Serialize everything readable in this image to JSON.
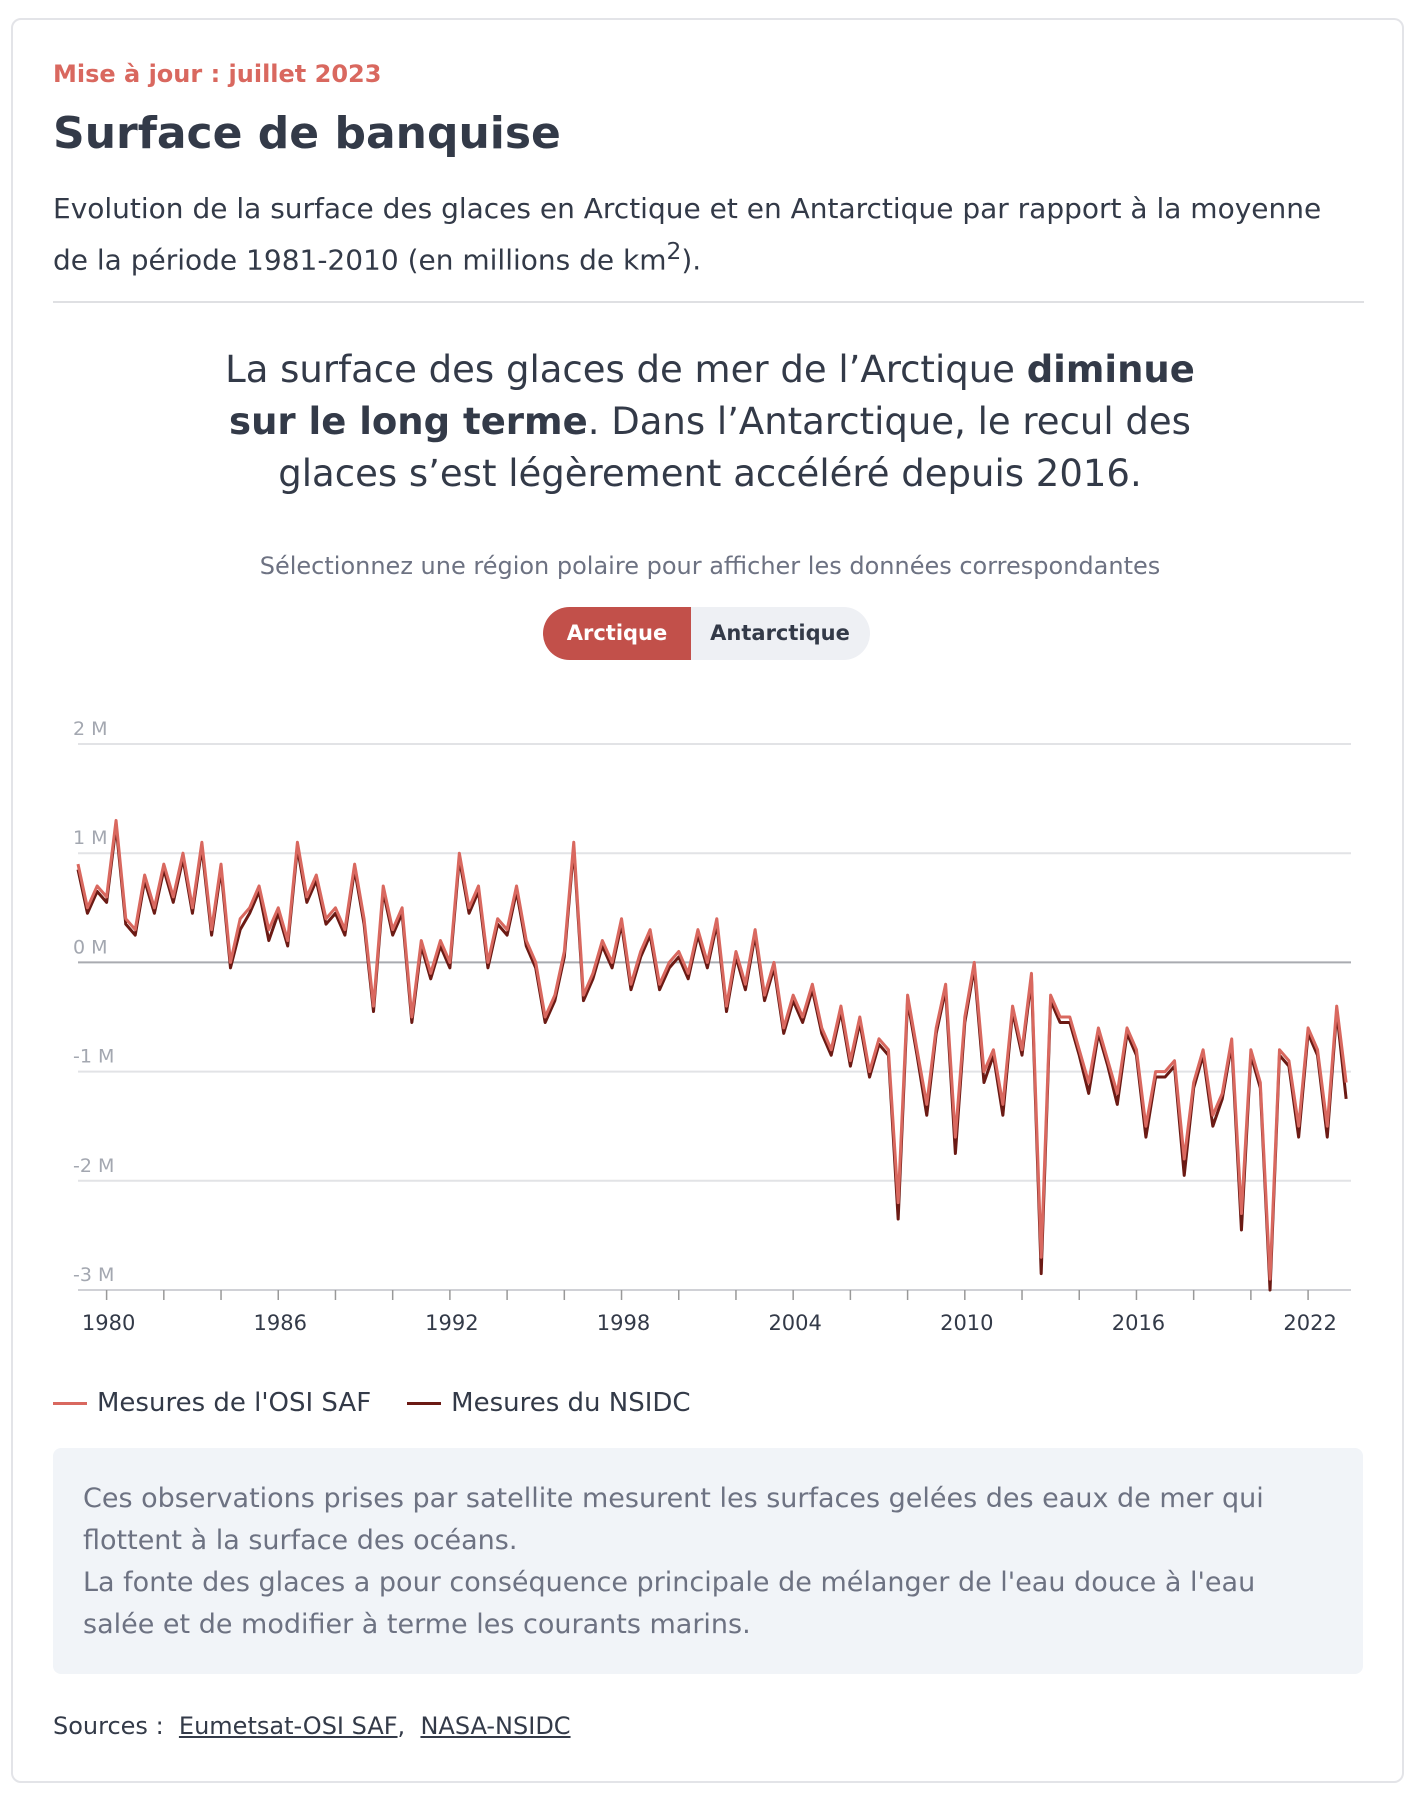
{
  "updated": "Mise à jour : juillet 2023",
  "header": {
    "title": "Surface de banquise",
    "subtitle": "Evolution de la surface des glaces en Arctique et en Antarctique par rapport à la moyenne de la période 1981-2010 (en millions de km",
    "subtitle_sup": "2",
    "subtitle_end": ")."
  },
  "headline": {
    "start": "La surface des glaces de mer de l’Arctique ",
    "bold": "diminue sur le long terme",
    "end": ". Dans l’Antarctique, le recul des glaces s’est légèrement accéléré depuis 2016."
  },
  "prompt": "Sélectionnez une région polaire pour afficher les données correspondantes",
  "buttons": [
    "Arctique",
    "Antarctique"
  ],
  "chart_data": {
    "type": "line",
    "x": [
      1979,
      1979.33,
      1979.67,
      1980,
      1980.33,
      1980.67,
      1981,
      1981.33,
      1981.67,
      1982,
      1982.33,
      1982.67,
      1983,
      1983.33,
      1983.67,
      1984,
      1984.33,
      1984.67,
      1985,
      1985.33,
      1985.67,
      1986,
      1986.33,
      1986.67,
      1987,
      1987.33,
      1987.67,
      1988,
      1988.33,
      1988.67,
      1989,
      1989.33,
      1989.67,
      1990,
      1990.33,
      1990.67,
      1991,
      1991.33,
      1991.67,
      1992,
      1992.33,
      1992.67,
      1993,
      1993.33,
      1993.67,
      1994,
      1994.33,
      1994.67,
      1995,
      1995.33,
      1995.67,
      1996,
      1996.33,
      1996.67,
      1997,
      1997.33,
      1997.67,
      1998,
      1998.33,
      1998.67,
      1999,
      1999.33,
      1999.67,
      2000,
      2000.33,
      2000.67,
      2001,
      2001.33,
      2001.67,
      2002,
      2002.33,
      2002.67,
      2003,
      2003.33,
      2003.67,
      2004,
      2004.33,
      2004.67,
      2005,
      2005.33,
      2005.67,
      2006,
      2006.33,
      2006.67,
      2007,
      2007.33,
      2007.67,
      2008,
      2008.33,
      2008.67,
      2009,
      2009.33,
      2009.67,
      2010,
      2010.33,
      2010.67,
      2011,
      2011.33,
      2011.67,
      2012,
      2012.33,
      2012.67,
      2013,
      2013.33,
      2013.67,
      2014,
      2014.33,
      2014.67,
      2015,
      2015.33,
      2015.67,
      2016,
      2016.33,
      2016.67,
      2017,
      2017.33,
      2017.67,
      2018,
      2018.33,
      2018.67,
      2019,
      2019.33,
      2019.67,
      2020,
      2020.33,
      2020.67,
      2021,
      2021.33,
      2021.67,
      2022,
      2022.33,
      2022.67,
      2023,
      2023.33
    ],
    "series": [
      {
        "name": "Mesures du NSIDC",
        "color": "#6b1a14",
        "values": [
          0.85,
          0.45,
          0.65,
          0.55,
          1.25,
          0.35,
          0.25,
          0.75,
          0.45,
          0.85,
          0.55,
          0.95,
          0.45,
          1.05,
          0.25,
          0.85,
          -0.05,
          0.3,
          0.45,
          0.65,
          0.2,
          0.45,
          0.15,
          1.05,
          0.55,
          0.75,
          0.35,
          0.45,
          0.25,
          0.85,
          0.35,
          -0.45,
          0.65,
          0.25,
          0.45,
          -0.55,
          0.15,
          -0.15,
          0.15,
          -0.05,
          0.95,
          0.45,
          0.65,
          -0.05,
          0.35,
          0.25,
          0.65,
          0.15,
          -0.05,
          -0.55,
          -0.35,
          0.05,
          1.05,
          -0.35,
          -0.15,
          0.15,
          -0.05,
          0.35,
          -0.25,
          0.05,
          0.25,
          -0.25,
          -0.05,
          0.05,
          -0.15,
          0.25,
          -0.05,
          0.35,
          -0.45,
          0.05,
          -0.25,
          0.25,
          -0.35,
          -0.05,
          -0.65,
          -0.35,
          -0.55,
          -0.25,
          -0.65,
          -0.85,
          -0.45,
          -0.95,
          -0.55,
          -1.05,
          -0.75,
          -0.85,
          -2.35,
          -0.35,
          -0.85,
          -1.4,
          -0.65,
          -0.25,
          -1.75,
          -0.55,
          -0.05,
          -1.1,
          -0.85,
          -1.4,
          -0.45,
          -0.85,
          -0.15,
          -2.85,
          -0.35,
          -0.55,
          -0.55,
          -0.85,
          -1.2,
          -0.65,
          -0.95,
          -1.3,
          -0.65,
          -0.85,
          -1.6,
          -1.05,
          -1.05,
          -0.95,
          -1.95,
          -1.15,
          -0.85,
          -1.5,
          -1.25,
          -0.75,
          -2.45,
          -0.85,
          -1.15,
          -3.0,
          -0.85,
          -0.95,
          -1.6,
          -0.65,
          -0.85,
          -1.6,
          -0.45,
          -1.25
        ]
      },
      {
        "name": "Mesures de l'OSI SAF",
        "color": "#d9685f",
        "values": [
          0.9,
          0.5,
          0.7,
          0.6,
          1.3,
          0.4,
          0.3,
          0.8,
          0.5,
          0.9,
          0.6,
          1.0,
          0.5,
          1.1,
          0.3,
          0.9,
          0.0,
          0.4,
          0.5,
          0.7,
          0.3,
          0.5,
          0.2,
          1.1,
          0.6,
          0.8,
          0.4,
          0.5,
          0.3,
          0.9,
          0.4,
          -0.4,
          0.7,
          0.3,
          0.5,
          -0.5,
          0.2,
          -0.1,
          0.2,
          0.0,
          1.0,
          0.5,
          0.7,
          0.0,
          0.4,
          0.3,
          0.7,
          0.2,
          0.0,
          -0.5,
          -0.3,
          0.1,
          1.1,
          -0.3,
          -0.1,
          0.2,
          0.0,
          0.4,
          -0.2,
          0.1,
          0.3,
          -0.2,
          0.0,
          0.1,
          -0.1,
          0.3,
          0.0,
          0.4,
          -0.4,
          0.1,
          -0.2,
          0.3,
          -0.3,
          0.0,
          -0.6,
          -0.3,
          -0.5,
          -0.2,
          -0.6,
          -0.8,
          -0.4,
          -0.9,
          -0.5,
          -1.0,
          -0.7,
          -0.8,
          -2.2,
          -0.3,
          -0.8,
          -1.3,
          -0.6,
          -0.2,
          -1.6,
          -0.5,
          0.0,
          -1.0,
          -0.8,
          -1.3,
          -0.4,
          -0.8,
          -0.1,
          -2.7,
          -0.3,
          -0.5,
          -0.5,
          -0.8,
          -1.1,
          -0.6,
          -0.9,
          -1.2,
          -0.6,
          -0.8,
          -1.5,
          -1.0,
          -1.0,
          -0.9,
          -1.8,
          -1.1,
          -0.8,
          -1.4,
          -1.2,
          -0.7,
          -2.3,
          -0.8,
          -1.1,
          -2.9,
          -0.8,
          -0.9,
          -1.5,
          -0.6,
          -0.8,
          -1.5,
          -0.4,
          -1.1
        ]
      }
    ],
    "legend_order": [
      1,
      0
    ],
    "xlim": [
      1979,
      2023.5
    ],
    "xticks": [
      1980,
      1986,
      1992,
      1998,
      2004,
      2010,
      2016,
      2022
    ],
    "xminorticks": [
      1982,
      1984,
      1988,
      1990,
      1994,
      1996,
      2000,
      2002,
      2006,
      2008,
      2012,
      2014,
      2018,
      2020
    ],
    "ylim": [
      -3,
      2
    ],
    "yticks": [
      {
        "value": -3,
        "label": "-3 M"
      },
      {
        "value": -2,
        "label": "-2 M"
      },
      {
        "value": -1,
        "label": "-1 M"
      },
      {
        "value": 0,
        "label": "0 M"
      },
      {
        "value": 1,
        "label": "1 M"
      },
      {
        "value": 2,
        "label": "2 M"
      }
    ],
    "grid": true
  },
  "note": [
    "Ces observations prises par satellite mesurent les surfaces gelées des eaux de mer qui flottent à la surface des océans.",
    "La fonte des glaces a pour conséquence principale de mélanger de l'eau douce à l'eau salée et de modifier à terme les courants marins."
  ],
  "sources": {
    "label": "Sources :",
    "links": [
      "Eumetsat-OSI SAF",
      "NASA-NSIDC"
    ],
    "separator": ","
  }
}
